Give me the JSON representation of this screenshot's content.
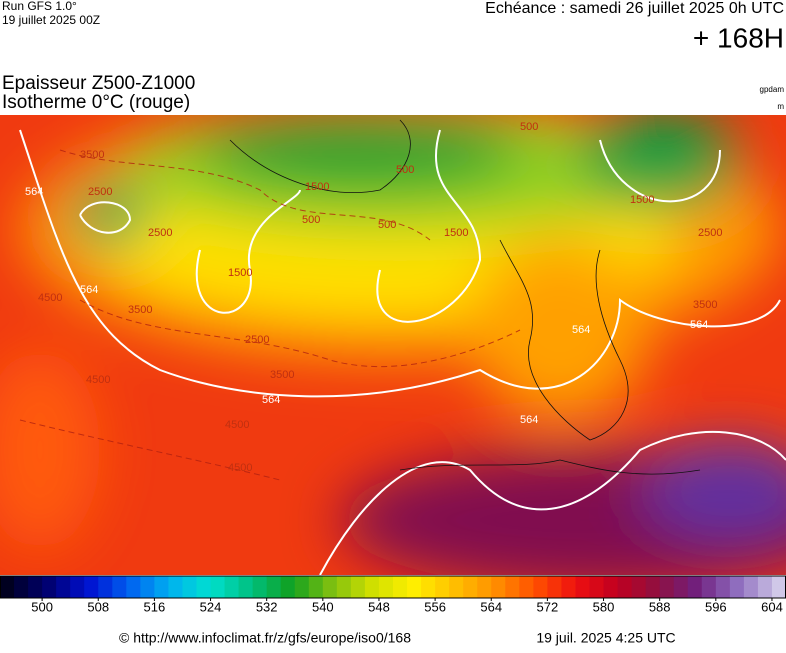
{
  "header": {
    "run": "Run GFS 1.0°",
    "run_date": "19 juillet 2025 00Z",
    "valid": "Echéance : samedi 26 juillet 2025 0h UTC",
    "lead": "+ 168H",
    "title_line1": "Epaisseur Z500-Z1000",
    "title_line2": "Isotherme 0°C (rouge)",
    "unit1": "gpdam",
    "unit2": "m"
  },
  "map": {
    "contour_labels": [
      "564",
      "564",
      "564",
      "564",
      "564",
      "564",
      "2500",
      "2500",
      "2500",
      "2500",
      "1500",
      "1500",
      "1500",
      "1500",
      "500",
      "500",
      "500",
      "500",
      "3500",
      "3500",
      "3500",
      "3500",
      "4500",
      "4500",
      "4500",
      "4500"
    ]
  },
  "colorbar": {
    "xlim": [
      494,
      606
    ],
    "ticks": [
      500,
      508,
      516,
      524,
      532,
      540,
      548,
      556,
      564,
      572,
      580,
      588,
      596,
      604
    ],
    "colors": [
      "#000020",
      "#000070",
      "#0010d0",
      "#0060f0",
      "#00b0f0",
      "#00e0d0",
      "#00c080",
      "#10a020",
      "#80c010",
      "#d0e000",
      "#ffef00",
      "#ffc000",
      "#ff9000",
      "#ff5000",
      "#ee1010",
      "#c00020",
      "#901040",
      "#702080",
      "#9070c0",
      "#d0c8e8"
    ]
  },
  "footer": {
    "url": "© http://www.infoclimat.fr/z/gfs/europe/iso0/168",
    "stamp": "19 juil. 2025  4:25 UTC"
  }
}
